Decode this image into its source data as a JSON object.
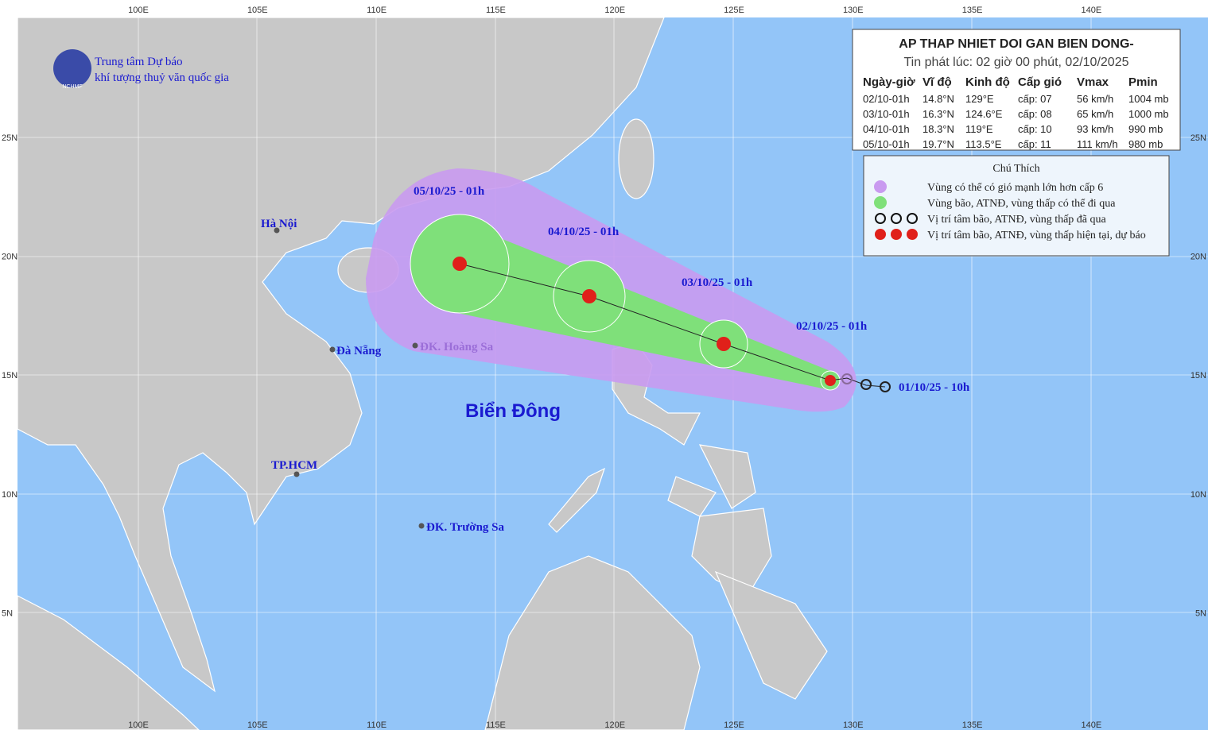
{
  "header": {
    "logo_text": "NCHMF",
    "org_line1": "Trung tâm Dự báo",
    "org_line2": "khí tượng thuỷ văn quốc gia"
  },
  "axes": {
    "lon_labels": [
      "100E",
      "105E",
      "110E",
      "115E",
      "120E",
      "125E",
      "130E",
      "135E",
      "140E"
    ],
    "lat_labels": [
      "25N",
      "20N",
      "15N",
      "10N",
      "5N"
    ]
  },
  "places": [
    "Hà Nội",
    "Đà Nẵng",
    "TP.HCM",
    "ĐK. Hoàng Sa",
    "ĐK. Trường Sa"
  ],
  "sea_label": "Biển Đông",
  "track_labels": [
    "05/10/25 - 01h",
    "04/10/25 - 01h",
    "03/10/25 - 01h",
    "02/10/25 - 01h",
    "01/10/25 - 10h"
  ],
  "info_box": {
    "title": "AP THAP NHIET DOI GAN BIEN DONG-",
    "issued": "Tin phát lúc: 02 giờ 00 phút, 02/10/2025",
    "columns": [
      "Ngày-giờ",
      "Vĩ độ",
      "Kinh độ",
      "Cấp gió",
      "Vmax",
      "Pmin"
    ],
    "rows": [
      [
        "02/10-01h",
        "14.8°N",
        "129°E",
        "cấp: 07",
        "56 km/h",
        "1004 mb"
      ],
      [
        "03/10-01h",
        "16.3°N",
        "124.6°E",
        "cấp: 08",
        "65 km/h",
        "1000 mb"
      ],
      [
        "04/10-01h",
        "18.3°N",
        "119°E",
        "cấp: 10",
        "93 km/h",
        "990 mb"
      ],
      [
        "05/10-01h",
        "19.7°N",
        "113.5°E",
        "cấp: 11",
        "111 km/h",
        "980 mb"
      ]
    ]
  },
  "legend": {
    "title": "Chú Thích",
    "items": [
      "Vùng có thể có gió mạnh lớn hơn cấp 6",
      "Vùng bão, ATNĐ, vùng thấp có thể đi qua",
      "Vị trí tâm bão, ATNĐ, vùng thấp đã qua",
      "Vị trí tâm bão, ATNĐ, vùng thấp hiện tại, dự báo"
    ]
  }
}
